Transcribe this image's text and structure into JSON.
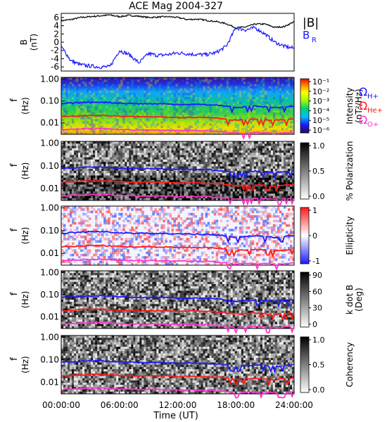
{
  "title": "ACE Mag 2004-327",
  "xaxis": {
    "label": "Time (UT)",
    "ticks": [
      "00:00:00",
      "06:00:00",
      "12:00:00",
      "18:00:00",
      "24:00:00"
    ],
    "range_hours": [
      0,
      24
    ]
  },
  "legend_top": {
    "b_total": "|B|",
    "b_r": "B",
    "b_r_sub": "R"
  },
  "legend_freq": [
    {
      "sym": "Ω",
      "sub": "H+",
      "color": "#1a1aff"
    },
    {
      "sym": "Ω",
      "sub": "He+",
      "color": "#ff1a1a"
    },
    {
      "sym": "Ω",
      "sub": "O+",
      "color": "#ff33cc"
    }
  ],
  "colors": {
    "b_total": "#000000",
    "b_r": "#1a1aff",
    "h_plus": "#1a1aff",
    "he_plus": "#ff1a1a",
    "o_plus": "#ff33cc"
  },
  "chart_data": [
    {
      "type": "line",
      "panel": "B",
      "ylabel": "B",
      "yunits": "(nT)",
      "ylim": [
        -7,
        7
      ],
      "yticks": [
        "6",
        "4",
        "2",
        "0",
        "-2",
        "-4",
        "-6"
      ],
      "series": [
        {
          "name": "|B|",
          "x": [
            0,
            1,
            2,
            3,
            4,
            5,
            6,
            7,
            8,
            9,
            10,
            11,
            12,
            13,
            14,
            15,
            16,
            17,
            18,
            19,
            20,
            21,
            22,
            23,
            24
          ],
          "values": [
            5.2,
            5.5,
            6.0,
            6.2,
            6.4,
            6.6,
            6.2,
            6.5,
            6.3,
            6.0,
            6.1,
            6.2,
            6.0,
            5.5,
            5.6,
            5.3,
            5.0,
            4.5,
            3.5,
            3.7,
            4.4,
            4.4,
            3.6,
            3.8,
            5.0
          ]
        },
        {
          "name": "B_R",
          "x": [
            0,
            1,
            2,
            3,
            4,
            5,
            6,
            7,
            8,
            9,
            10,
            11,
            12,
            13,
            14,
            15,
            16,
            17,
            18,
            19,
            20,
            21,
            22,
            23,
            24
          ],
          "values": [
            -1.0,
            -4.5,
            -5.5,
            -5.8,
            -6.0,
            -6.0,
            -2.0,
            -3.0,
            -5.0,
            -2.8,
            -3.2,
            -3.0,
            -2.6,
            -2.8,
            -3.0,
            -3.0,
            -2.5,
            -1.0,
            3.5,
            3.0,
            3.5,
            2.0,
            0.0,
            -1.0,
            -1.5
          ]
        }
      ]
    },
    {
      "type": "heatmap",
      "panel": "Intensity",
      "ylabel": "f",
      "yunits": "(Hz)",
      "yscale": "log",
      "ylim": [
        0.003,
        1.2
      ],
      "yticks": [
        "1.00",
        "0.10",
        "0.01"
      ],
      "colorbar_label": "Intensity",
      "colorbar_units": "(nT²/Hz)",
      "colorbar_ticks": [
        "10⁻¹",
        "10⁻²",
        "10⁻³",
        "10⁻⁴",
        "10⁻⁵",
        "10⁻⁶"
      ],
      "colormap": "rainbow"
    },
    {
      "type": "heatmap",
      "panel": "Polarization",
      "ylabel": "f",
      "yunits": "(Hz)",
      "yscale": "log",
      "ylim": [
        0.003,
        1.2
      ],
      "yticks": [
        "1.00",
        "0.10",
        "0.01"
      ],
      "colorbar_label": "% Polarization",
      "colorbar_ticks": [
        "1.0",
        "0.5",
        "0.0"
      ],
      "colormap": "grayscale"
    },
    {
      "type": "heatmap",
      "panel": "Ellipticity",
      "ylabel": "f",
      "yunits": "(Hz)",
      "yscale": "log",
      "ylim": [
        0.003,
        1.2
      ],
      "yticks": [
        "1.00",
        "0.10",
        "0.01"
      ],
      "colorbar_label": "Ellipticity",
      "colorbar_ticks": [
        "1",
        "0",
        "-1"
      ],
      "colormap": "blue-white-red"
    },
    {
      "type": "heatmap",
      "panel": "kdotB",
      "ylabel": "f",
      "yunits": "(Hz)",
      "yscale": "log",
      "ylim": [
        0.003,
        1.2
      ],
      "yticks": [
        "1.00",
        "0.10",
        "0.01"
      ],
      "colorbar_label": "k dot B",
      "colorbar_units": "(Deg)",
      "colorbar_ticks": [
        "90",
        "60",
        "30",
        "0"
      ],
      "colormap": "grayscale"
    },
    {
      "type": "heatmap",
      "panel": "Coherency",
      "ylabel": "f",
      "yunits": "(Hz)",
      "yscale": "log",
      "ylim": [
        0.003,
        1.2
      ],
      "yticks": [
        "1.00",
        "0.10",
        "0.01"
      ],
      "colorbar_label": "Coherency",
      "colorbar_ticks": [
        "1.0",
        "0.5",
        "0.0"
      ],
      "colormap": "grayscale"
    },
    {
      "type": "line",
      "panel": "gyrofrequency overlays (all spectrogram panels)",
      "yscale": "log",
      "series": [
        {
          "name": "ΩH+",
          "x": [
            0,
            2,
            4,
            6,
            8,
            10,
            12,
            14,
            16,
            18,
            20,
            22,
            24
          ],
          "values": [
            0.075,
            0.085,
            0.09,
            0.08,
            0.075,
            0.075,
            0.07,
            0.07,
            0.065,
            0.05,
            0.058,
            0.05,
            0.06
          ]
        },
        {
          "name": "ΩHe+",
          "x": [
            0,
            2,
            4,
            6,
            8,
            10,
            12,
            14,
            16,
            18,
            20,
            22,
            24
          ],
          "values": [
            0.019,
            0.021,
            0.022,
            0.02,
            0.019,
            0.019,
            0.018,
            0.018,
            0.017,
            0.013,
            0.015,
            0.013,
            0.015
          ]
        },
        {
          "name": "ΩO+",
          "x": [
            0,
            2,
            4,
            6,
            8,
            10,
            12,
            14,
            16,
            18,
            20,
            22,
            24
          ],
          "values": [
            0.0047,
            0.0052,
            0.0055,
            0.005,
            0.0047,
            0.0047,
            0.0045,
            0.0045,
            0.0042,
            0.0033,
            0.0037,
            0.0033,
            0.0037
          ]
        }
      ]
    }
  ]
}
